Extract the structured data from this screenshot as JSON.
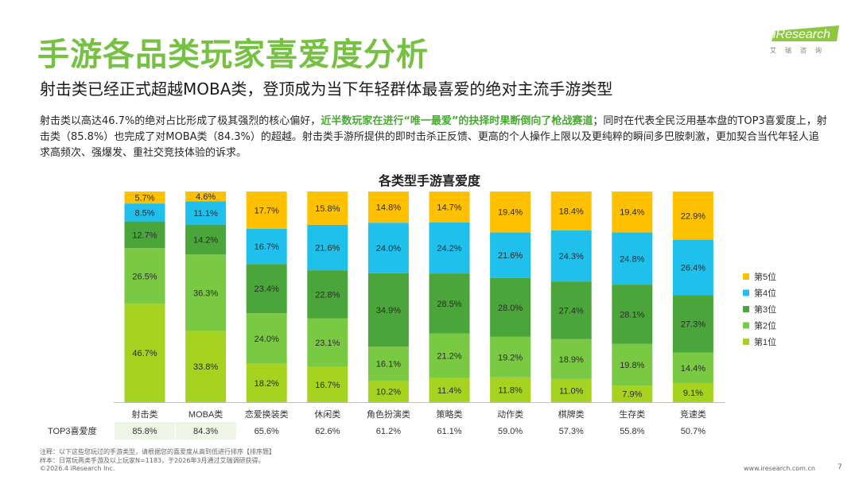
{
  "title": "手游各品类玩家喜爱度分析",
  "subtitle": "射击类已经正式超越MOBA类，登顶成为当下年轻群体最喜爱的绝对主流手游类型",
  "body": {
    "p1": "射击类以高达46.7%的绝对占比形成了极其强烈的核心偏好，",
    "highlight": "近半数玩家在进行“唯一最爱”的抉择时果断倒向了枪战赛道",
    "p2": "；同时在代表全民泛用基本盘的TOP3喜爱度上，射击类（85.8%）也完成了对MOBA类（84.3%）的超越。射击类手游所提供的即时击杀正反馈、更高的个人操作上限以及更纯粹的瞬间多巴胺刺激，更加契合当代年轻人追求高频次、强爆发、重社交竞技体验的诉求。"
  },
  "logo": {
    "wordmark": "iResearch",
    "chinese": "艾瑞咨询"
  },
  "chart_data": {
    "type": "bar",
    "stacked": true,
    "percent_stacked": true,
    "title": "各类型手游喜爱度",
    "categories": [
      "射击类",
      "MOBA类",
      "恋爱换装类",
      "休闲类",
      "角色扮演类",
      "策略类",
      "动作类",
      "棋牌类",
      "生存类",
      "竞速类"
    ],
    "series": [
      {
        "name": "第1位",
        "color": "#a5d31f",
        "values": [
          46.7,
          33.8,
          18.2,
          16.7,
          10.2,
          11.4,
          11.8,
          11.0,
          7.9,
          9.1
        ]
      },
      {
        "name": "第2位",
        "color": "#7ac943",
        "values": [
          26.5,
          36.3,
          24.0,
          23.1,
          16.1,
          21.2,
          19.2,
          18.9,
          19.8,
          14.4
        ]
      },
      {
        "name": "第3位",
        "color": "#4aa63a",
        "values": [
          12.7,
          14.2,
          23.4,
          22.8,
          34.9,
          28.5,
          28.0,
          27.4,
          28.1,
          27.3
        ]
      },
      {
        "name": "第4位",
        "color": "#1fc0ec",
        "values": [
          8.5,
          11.1,
          16.7,
          21.6,
          24.0,
          24.2,
          21.6,
          24.3,
          24.8,
          26.4
        ]
      },
      {
        "name": "第5位",
        "color": "#ffc000",
        "values": [
          5.7,
          4.6,
          17.7,
          15.8,
          14.8,
          14.7,
          19.4,
          18.4,
          19.4,
          22.9
        ]
      }
    ],
    "legend_order": [
      "第5位",
      "第4位",
      "第3位",
      "第2位",
      "第1位"
    ],
    "legend_position": "right",
    "ylim": [
      0,
      100
    ],
    "grid": false,
    "top3": {
      "label": "TOP3喜爱度",
      "values": [
        "85.8%",
        "84.3%",
        "65.6%",
        "62.6%",
        "61.2%",
        "61.1%",
        "59.0%",
        "57.3%",
        "55.8%",
        "50.7%"
      ]
    },
    "top3_highlight_count": 2,
    "top3_highlight_color": "#eef5e4"
  },
  "footnotes": {
    "note": "注释：以下这些您玩过的手游类型，请根据您的喜爱度从高到低进行排序【排序题】",
    "sample": "样本：日常玩两类手游及以上玩家N=1183，于2026年3月通过艾瑞调研获得。",
    "copyright": "©2026.4 iResearch Inc.",
    "site": "www.iresearch.com.cn",
    "page": "7"
  }
}
